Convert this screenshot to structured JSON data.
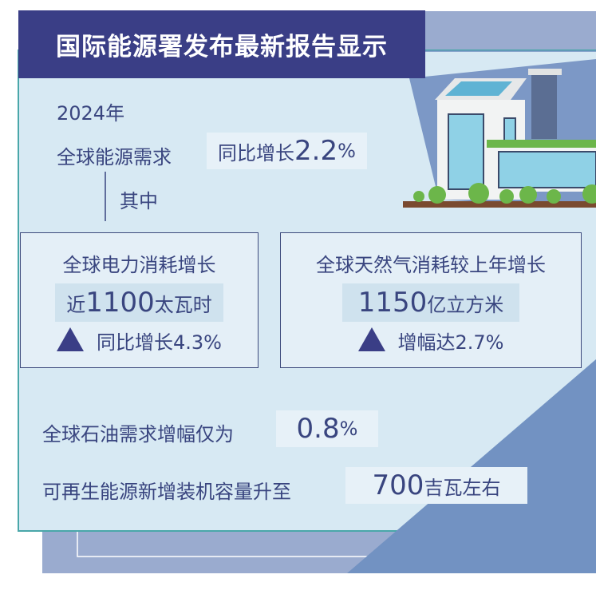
{
  "title": "国际能源署发布最新报告显示",
  "year": "2024年",
  "global_demand": {
    "label": "全球能源需求",
    "value_prefix": "同比增长",
    "value": "2.2",
    "unit": "%"
  },
  "among": "其中",
  "electricity": {
    "label": "全球电力消耗增长",
    "prefix": "近",
    "value": "1100",
    "unit": "太瓦时",
    "growth": "同比增长4.3%"
  },
  "gas": {
    "label": "全球天然气消耗较上年增长",
    "value": "1150",
    "unit": "亿立方米",
    "growth": "增幅达2.7%"
  },
  "oil": {
    "label": "全球石油需求增幅仅为",
    "value": "0.8",
    "unit": "%"
  },
  "renewables": {
    "label": "可再生能源新增装机容量升至",
    "value": "700",
    "unit": "吉瓦左右"
  },
  "colors": {
    "title_bg": "#3a3e86",
    "text": "#39457f",
    "panel": "#d7e9f3",
    "accent_dark": "#7292c2",
    "accent_light": "#9aabcf",
    "border": "#4aa7a9"
  }
}
